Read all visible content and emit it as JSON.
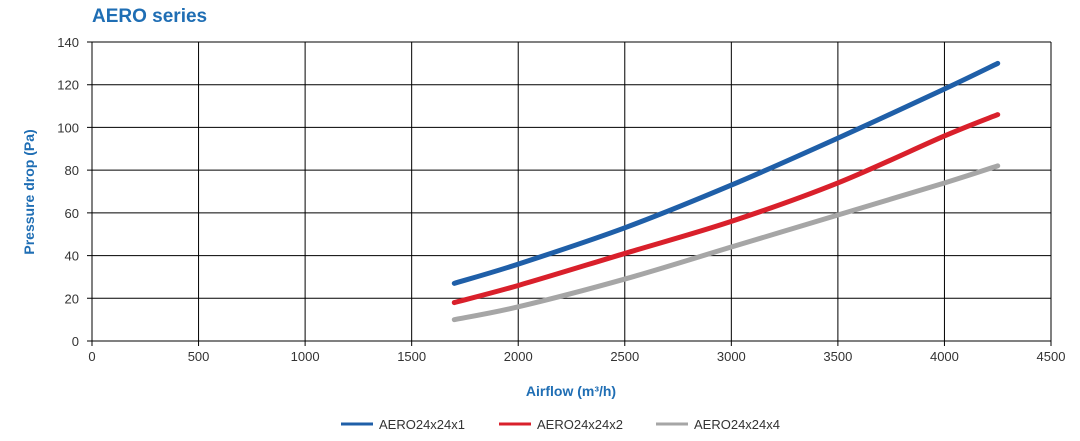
{
  "chart_data": {
    "type": "line",
    "title": "AERO series",
    "xlabel": "Airflow (m³/h)",
    "ylabel": "Pressure drop (Pa)",
    "xlim": [
      0,
      4500
    ],
    "ylim": [
      0,
      140
    ],
    "x_ticks": [
      0,
      500,
      1000,
      1500,
      2000,
      2500,
      3000,
      3500,
      4000,
      4500
    ],
    "y_ticks": [
      0,
      20,
      40,
      60,
      80,
      100,
      120,
      140
    ],
    "grid": true,
    "legend_position": "bottom",
    "title_color": "#1f6eb4",
    "label_color": "#1f6eb4",
    "series": [
      {
        "name": "AERO24x24x1",
        "color": "#1f5fa8",
        "points": [
          [
            1700,
            27
          ],
          [
            2000,
            36
          ],
          [
            2500,
            53
          ],
          [
            3000,
            73
          ],
          [
            3500,
            95
          ],
          [
            4000,
            118
          ],
          [
            4250,
            130
          ]
        ]
      },
      {
        "name": "AERO24x24x2",
        "color": "#d9202b",
        "points": [
          [
            1700,
            18
          ],
          [
            2000,
            26
          ],
          [
            2500,
            41
          ],
          [
            3000,
            56
          ],
          [
            3500,
            74
          ],
          [
            4000,
            96
          ],
          [
            4250,
            106
          ]
        ]
      },
      {
        "name": "AERO24x24x4",
        "color": "#a6a6a6",
        "points": [
          [
            1700,
            10
          ],
          [
            2000,
            16
          ],
          [
            2500,
            29
          ],
          [
            3000,
            44
          ],
          [
            3500,
            59
          ],
          [
            4000,
            74
          ],
          [
            4250,
            82
          ]
        ]
      }
    ]
  }
}
